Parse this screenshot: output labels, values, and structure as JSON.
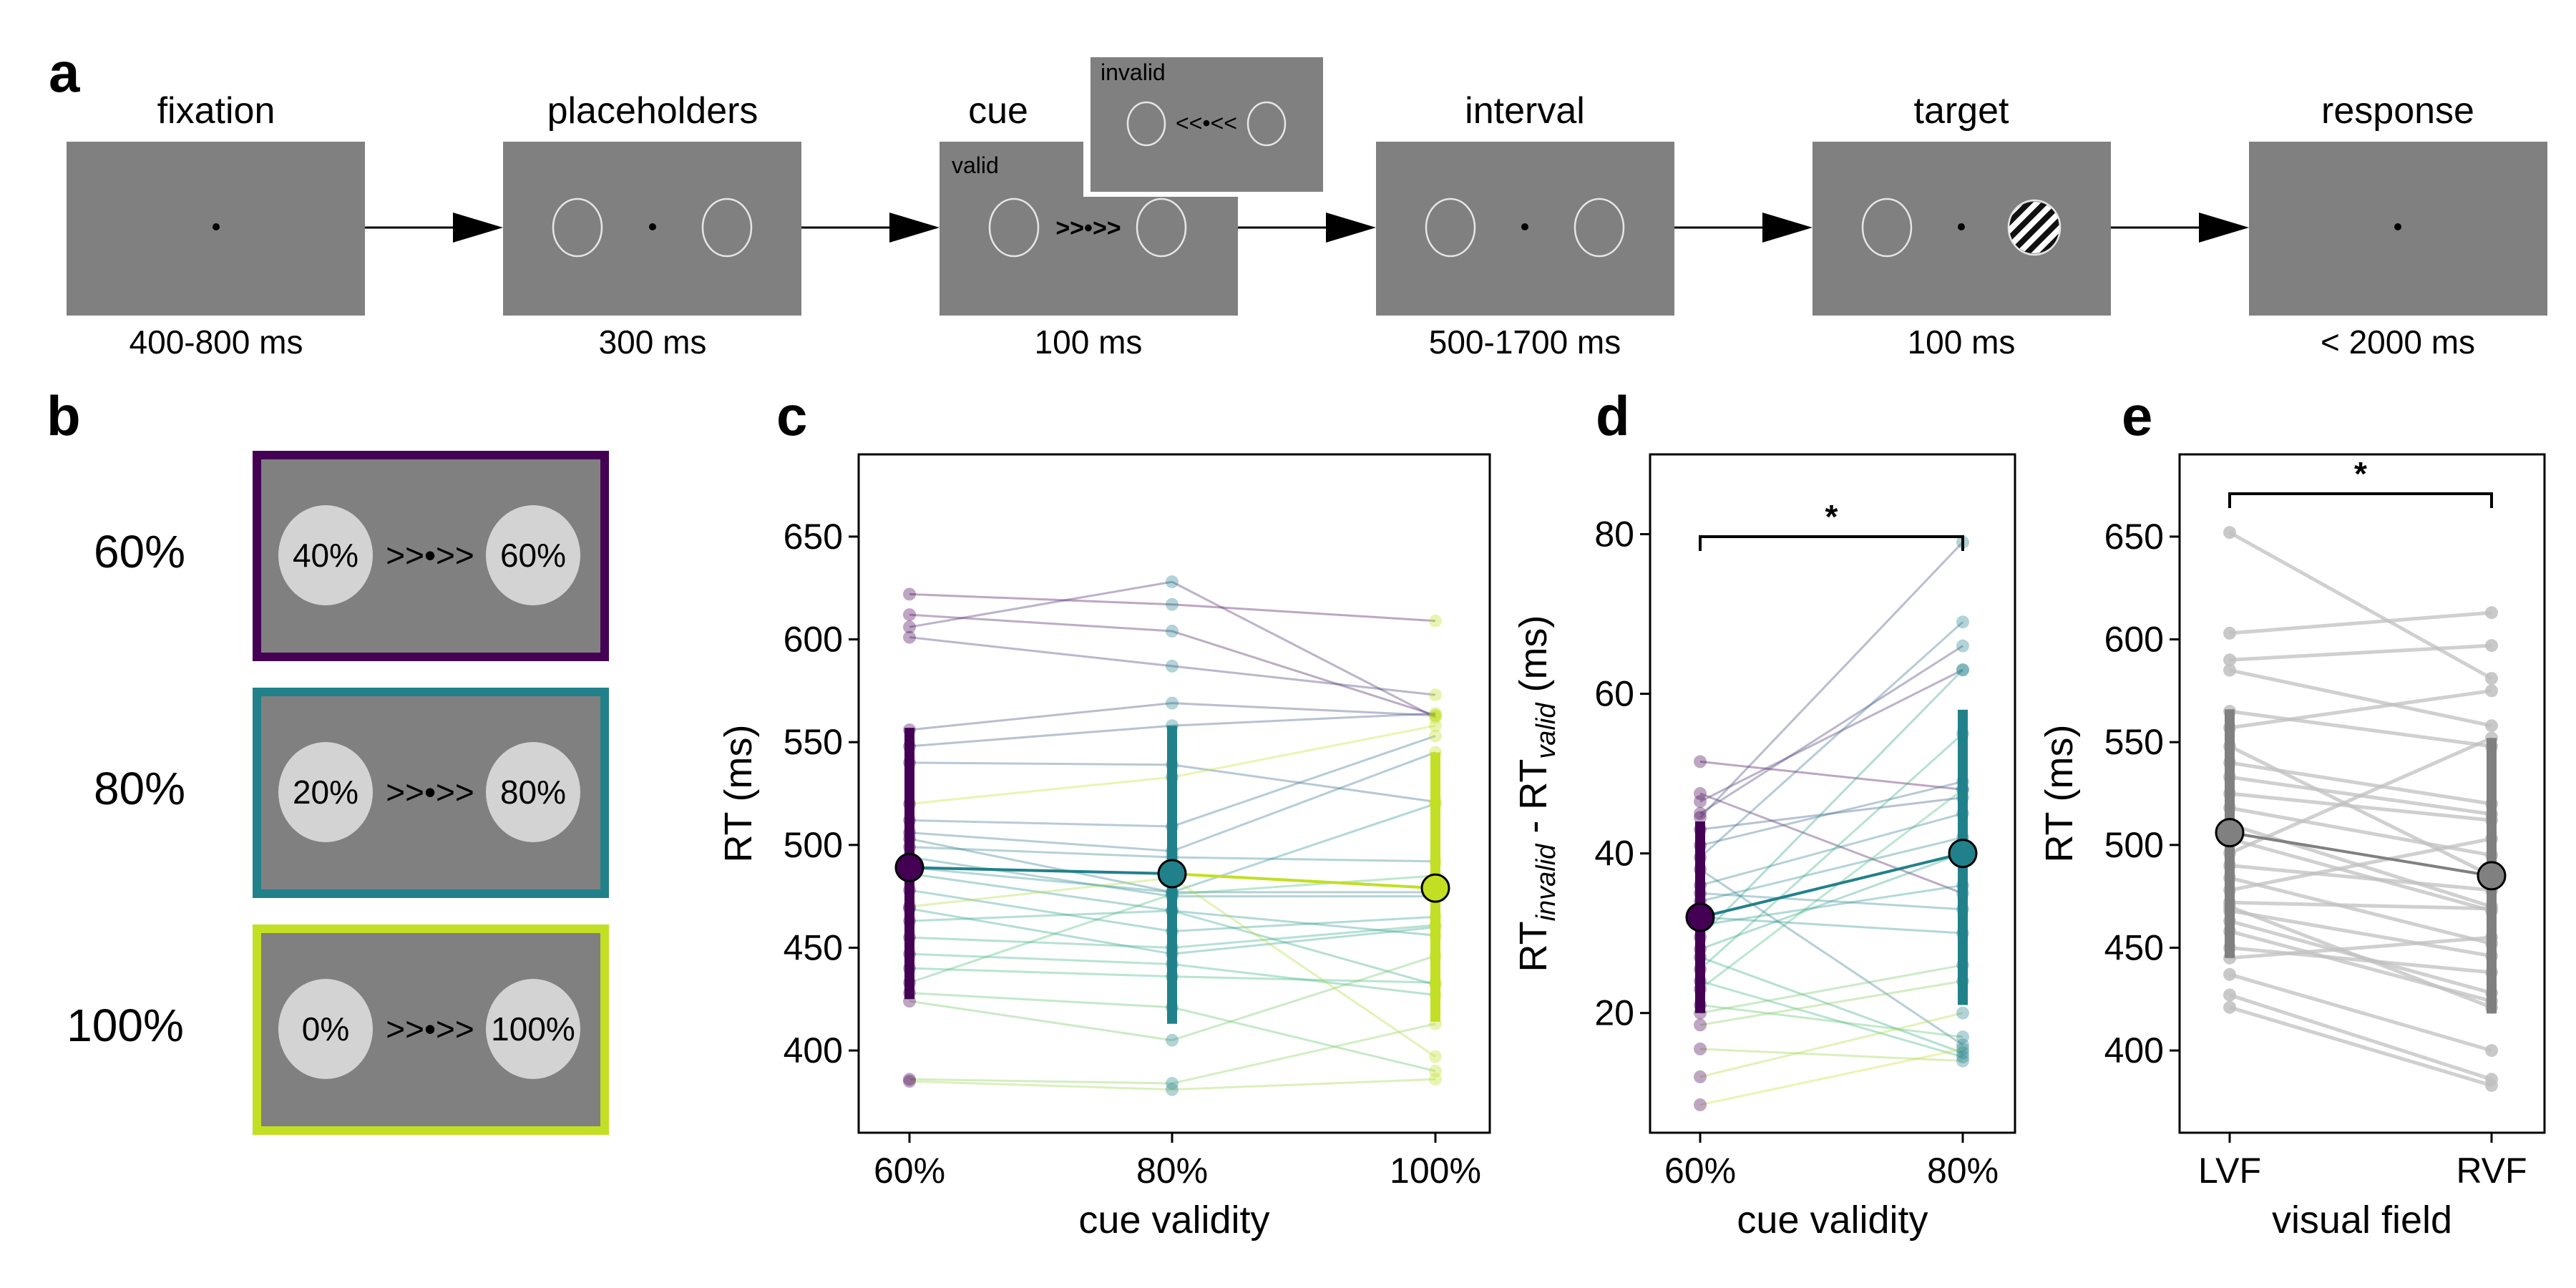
{
  "colors": {
    "screen": "#808080",
    "c60": "#440154",
    "c80": "#21818b",
    "c100": "#c2df23",
    "grey_dot": "#808080",
    "grey_line": "#c0c0c0",
    "placeholder_stroke": "#e6e6e6",
    "probability_circle": "#d3d3d3"
  },
  "panel_a": {
    "letter": "a",
    "steps": [
      {
        "title": "fixation",
        "duration": "400-800 ms"
      },
      {
        "title": "placeholders",
        "duration": "300 ms"
      },
      {
        "title": "cue",
        "duration": "100 ms"
      },
      {
        "title": "interval",
        "duration": "500-1700 ms"
      },
      {
        "title": "target",
        "duration": "100 ms"
      },
      {
        "title": "response",
        "duration": "< 2000 ms"
      }
    ],
    "cue_valid_label": "valid",
    "cue_invalid_label": "invalid",
    "cue_valid_arrows": ">>•>>",
    "cue_invalid_arrows": "<<•<<"
  },
  "panel_b": {
    "letter": "b",
    "conditions": [
      {
        "label": "60%",
        "left": "40%",
        "right": "60%",
        "arrows": ">>•>>",
        "color": "#440154"
      },
      {
        "label": "80%",
        "left": "20%",
        "right": "80%",
        "arrows": ">>•>>",
        "color": "#21818b"
      },
      {
        "label": "100%",
        "left": "0%",
        "right": "100%",
        "arrows": ">>•>>",
        "color": "#c2df23"
      }
    ]
  },
  "chart_data": [
    {
      "panel": "c",
      "type": "line",
      "xlabel": "cue validity",
      "ylabel": "RT (ms)",
      "categories": [
        "60%",
        "80%",
        "100%"
      ],
      "ylim": [
        360,
        690
      ],
      "yticks": [
        400,
        450,
        500,
        550,
        600,
        650
      ],
      "mean": [
        489,
        486,
        479
      ],
      "error_low": [
        425,
        413,
        414
      ],
      "error_high": [
        557,
        558,
        545
      ],
      "subjects": [
        [
          622,
          617,
          609
        ],
        [
          612,
          604,
          563
        ],
        [
          606,
          628,
          562
        ],
        [
          601,
          587,
          573
        ],
        [
          556,
          569,
          563
        ],
        [
          548,
          558,
          564
        ],
        [
          540,
          539,
          521
        ],
        [
          512,
          509,
          553
        ],
        [
          506,
          497,
          545
        ],
        [
          503,
          477,
          477
        ],
        [
          499,
          494,
          492
        ],
        [
          494,
          475,
          475
        ],
        [
          489,
          477,
          520
        ],
        [
          486,
          468,
          456
        ],
        [
          478,
          458,
          465
        ],
        [
          469,
          447,
          460
        ],
        [
          463,
          468,
          432
        ],
        [
          455,
          450,
          461
        ],
        [
          447,
          442,
          427
        ],
        [
          440,
          436,
          433
        ],
        [
          433,
          476,
          485
        ],
        [
          428,
          421,
          390
        ],
        [
          424,
          405,
          446
        ],
        [
          386,
          384,
          413
        ],
        [
          385,
          381,
          386
        ],
        [
          470,
          484,
          397
        ],
        [
          520,
          533,
          558
        ]
      ]
    },
    {
      "panel": "d",
      "type": "line",
      "xlabel": "cue validity",
      "ylabel_main": "RT",
      "ylabel_sub1": "invalid",
      "ylabel_mid": " - RT",
      "ylabel_sub2": "valid",
      "ylabel_unit": " (ms)",
      "categories": [
        "60%",
        "80%"
      ],
      "ylim": [
        5,
        90
      ],
      "yticks": [
        20,
        40,
        60,
        80
      ],
      "mean": [
        32,
        40
      ],
      "error_low": [
        20,
        21
      ],
      "error_high": [
        44,
        58
      ],
      "significance": "*",
      "subjects": [
        [
          51.5,
          48
        ],
        [
          47.5,
          35
        ],
        [
          46.5,
          63
        ],
        [
          45,
          66
        ],
        [
          44.5,
          79
        ],
        [
          43,
          47
        ],
        [
          41,
          49
        ],
        [
          39.5,
          69
        ],
        [
          38,
          16
        ],
        [
          36,
          45
        ],
        [
          35,
          33
        ],
        [
          34,
          42
        ],
        [
          32,
          30
        ],
        [
          31,
          36
        ],
        [
          29.5,
          63
        ],
        [
          28,
          40
        ],
        [
          27,
          15
        ],
        [
          25.5,
          55
        ],
        [
          24,
          14.5
        ],
        [
          23,
          48
        ],
        [
          21,
          17
        ],
        [
          20,
          26
        ],
        [
          18.5,
          24
        ],
        [
          15.5,
          14
        ],
        [
          12,
          20
        ],
        [
          8.5,
          15.5
        ]
      ]
    },
    {
      "panel": "e",
      "type": "line",
      "xlabel": "visual field",
      "ylabel": "RT (ms)",
      "categories": [
        "LVF",
        "RVF"
      ],
      "ylim": [
        360,
        690
      ],
      "yticks": [
        400,
        450,
        500,
        550,
        600,
        650
      ],
      "mean": [
        506,
        485
      ],
      "error_low": [
        445,
        418
      ],
      "error_high": [
        566,
        552
      ],
      "significance": "*",
      "subjects": [
        [
          652,
          581
        ],
        [
          603,
          613
        ],
        [
          590,
          597
        ],
        [
          585,
          558
        ],
        [
          565,
          548
        ],
        [
          557,
          575
        ],
        [
          548,
          485
        ],
        [
          540,
          520
        ],
        [
          533,
          515
        ],
        [
          525,
          512
        ],
        [
          518,
          495
        ],
        [
          510,
          470
        ],
        [
          503,
          468
        ],
        [
          496,
          552
        ],
        [
          490,
          478
        ],
        [
          484,
          452
        ],
        [
          478,
          503
        ],
        [
          472,
          469
        ],
        [
          468,
          446
        ],
        [
          463,
          428
        ],
        [
          458,
          424
        ],
        [
          450,
          438
        ],
        [
          437,
          400
        ],
        [
          427,
          386
        ],
        [
          421,
          383
        ],
        [
          470,
          421
        ],
        [
          445,
          455
        ]
      ]
    }
  ]
}
